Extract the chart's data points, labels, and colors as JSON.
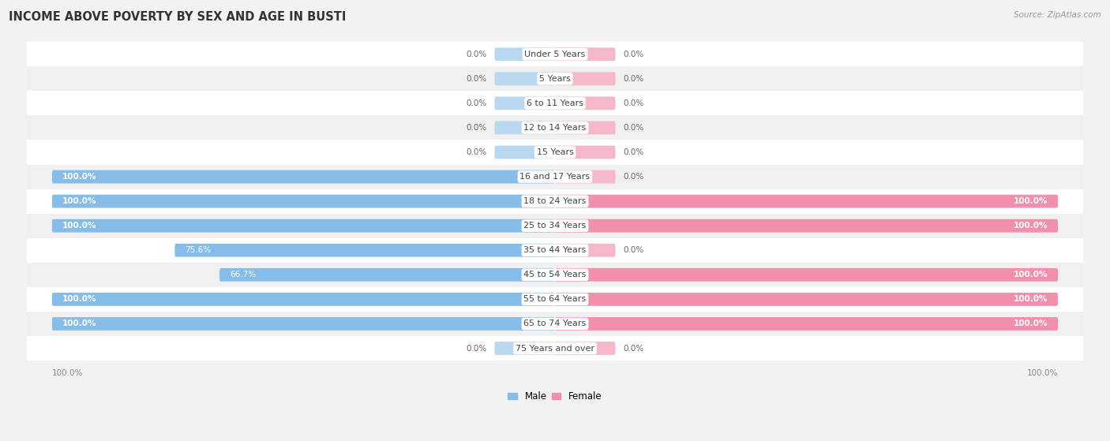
{
  "title": "INCOME ABOVE POVERTY BY SEX AND AGE IN BUSTI",
  "source": "Source: ZipAtlas.com",
  "categories": [
    "Under 5 Years",
    "5 Years",
    "6 to 11 Years",
    "12 to 14 Years",
    "15 Years",
    "16 and 17 Years",
    "18 to 24 Years",
    "25 to 34 Years",
    "35 to 44 Years",
    "45 to 54 Years",
    "55 to 64 Years",
    "65 to 74 Years",
    "75 Years and over"
  ],
  "male_values": [
    0.0,
    0.0,
    0.0,
    0.0,
    0.0,
    100.0,
    100.0,
    100.0,
    75.6,
    66.7,
    100.0,
    100.0,
    0.0
  ],
  "female_values": [
    0.0,
    0.0,
    0.0,
    0.0,
    0.0,
    0.0,
    100.0,
    100.0,
    0.0,
    100.0,
    100.0,
    100.0,
    0.0
  ],
  "male_color": "#85bde8",
  "female_color": "#f28faa",
  "male_stub_color": "#b8d8f0",
  "female_stub_color": "#f5b8c8",
  "bg_color": "#f2f2f2",
  "row_colors": [
    "#ffffff",
    "#f0f0f0"
  ],
  "title_fontsize": 10.5,
  "label_fontsize": 8.0,
  "bar_value_fontsize": 7.5,
  "axis_label_fontsize": 7.5,
  "legend_fontsize": 8.5,
  "stub_size": 12.0,
  "max_val": 100.0
}
